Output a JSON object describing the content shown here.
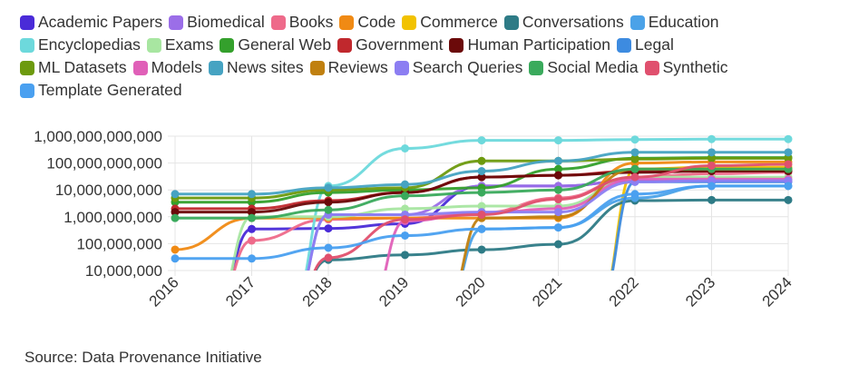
{
  "chart_data": {
    "type": "line",
    "title": "",
    "xlabel": "",
    "ylabel": "",
    "yscale": "log",
    "ylim": [
      10000000,
      1000000000000
    ],
    "x": [
      2016,
      2017,
      2018,
      2019,
      2020,
      2021,
      2022,
      2023,
      2024
    ],
    "y_ticks": [
      10000000,
      100000000,
      1000000000,
      10000000000,
      100000000000,
      1000000000000
    ],
    "y_tick_labels": [
      "10,000,000",
      "100,000,000",
      "1,000,000,000",
      "10,000,000,000",
      "100,000,000,000",
      "1,000,000,000,000"
    ],
    "legend_position": "top",
    "series": [
      {
        "name": "Academic Papers",
        "color": "#4a2bd8",
        "values": [
          null,
          350000000,
          370000000,
          550000000,
          14000000000,
          14000000000,
          22000000000,
          22000000000,
          22000000000
        ]
      },
      {
        "name": "Biomedical",
        "color": "#9b6ee8",
        "values": [
          null,
          null,
          1200000000,
          1200000000,
          14000000000,
          14000000000,
          22000000000,
          22000000000,
          22000000000
        ]
      },
      {
        "name": "Books",
        "color": "#ee6a8a",
        "values": [
          null,
          130000000,
          800000000,
          900000000,
          1400000000,
          5000000000,
          30000000000,
          40000000000,
          45000000000
        ]
      },
      {
        "name": "Code",
        "color": "#f08a14",
        "values": [
          60000000,
          900000000,
          900000000,
          900000000,
          900000000,
          900000000,
          100000000000,
          110000000000,
          110000000000
        ]
      },
      {
        "name": "Commerce",
        "color": "#f2c200",
        "values": [
          null,
          null,
          null,
          null,
          null,
          null,
          60000000000,
          70000000000,
          70000000000
        ]
      },
      {
        "name": "Conversations",
        "color": "#2e7b86",
        "values": [
          null,
          null,
          25000000,
          38000000,
          60000000,
          95000000,
          4000000000,
          4200000000,
          4200000000
        ]
      },
      {
        "name": "Education",
        "color": "#4ba2e8",
        "values": [
          null,
          null,
          null,
          null,
          350000000,
          400000000,
          5000000000,
          14000000000,
          14000000000
        ]
      },
      {
        "name": "Encyclopedias",
        "color": "#6dd9dc",
        "values": [
          null,
          null,
          14000000000,
          350000000000,
          700000000000,
          700000000000,
          750000000000,
          780000000000,
          780000000000
        ]
      },
      {
        "name": "Exams",
        "color": "#a8e6a1",
        "values": [
          null,
          1000000000,
          1000000000,
          2000000000,
          2500000000,
          2500000000,
          30000000000,
          30000000000,
          30000000000
        ]
      },
      {
        "name": "General Web",
        "color": "#34a02c",
        "values": [
          3500000000,
          3500000000,
          8000000000,
          10000000000,
          12000000000,
          60000000000,
          150000000000,
          160000000000,
          160000000000
        ]
      },
      {
        "name": "Government",
        "color": "#c0282d",
        "values": [
          2000000000,
          2000000000,
          4000000000,
          8000000000,
          30000000000,
          35000000000,
          50000000000,
          55000000000,
          55000000000
        ]
      },
      {
        "name": "Human Participation",
        "color": "#6b0a0a",
        "values": [
          1500000000,
          1500000000,
          3500000000,
          8000000000,
          30000000000,
          35000000000,
          45000000000,
          50000000000,
          50000000000
        ]
      },
      {
        "name": "Legal",
        "color": "#3d8be0",
        "values": [
          null,
          null,
          null,
          null,
          null,
          null,
          20000000000,
          20000000000,
          20000000000
        ]
      },
      {
        "name": "ML Datasets",
        "color": "#6d9a0e",
        "values": [
          5000000000,
          5000000000,
          10000000000,
          12000000000,
          120000000000,
          120000000000,
          140000000000,
          150000000000,
          150000000000
        ]
      },
      {
        "name": "Models",
        "color": "#e060b8",
        "values": [
          null,
          null,
          null,
          700000000,
          1400000000,
          2000000000,
          25000000000,
          25000000000,
          25000000000
        ]
      },
      {
        "name": "News sites",
        "color": "#46a3c2",
        "values": [
          7000000000,
          7000000000,
          12000000000,
          16000000000,
          50000000000,
          120000000000,
          250000000000,
          250000000000,
          250000000000
        ]
      },
      {
        "name": "Reviews",
        "color": "#c08010",
        "values": [
          null,
          null,
          null,
          null,
          900000000,
          1000000000,
          60000000000,
          60000000000,
          60000000000
        ]
      },
      {
        "name": "Search Queries",
        "color": "#8c7ef2",
        "values": [
          null,
          null,
          1200000000,
          1200000000,
          1500000000,
          1500000000,
          20000000000,
          22000000000,
          22000000000
        ]
      },
      {
        "name": "Social Media",
        "color": "#3aaa5c",
        "values": [
          900000000,
          900000000,
          1800000000,
          6000000000,
          8000000000,
          10000000000,
          60000000000,
          60000000000,
          60000000000
        ]
      },
      {
        "name": "Synthetic",
        "color": "#e0506e",
        "values": [
          null,
          null,
          30000000,
          800000000,
          1200000000,
          4500000000,
          30000000000,
          80000000000,
          90000000000
        ]
      },
      {
        "name": "Template Generated",
        "color": "#4aa0f0",
        "values": [
          28000000,
          28000000,
          70000000,
          200000000,
          350000000,
          400000000,
          7000000000,
          14000000000,
          14000000000
        ]
      }
    ]
  },
  "source": "Source: Data Provenance Initiative"
}
